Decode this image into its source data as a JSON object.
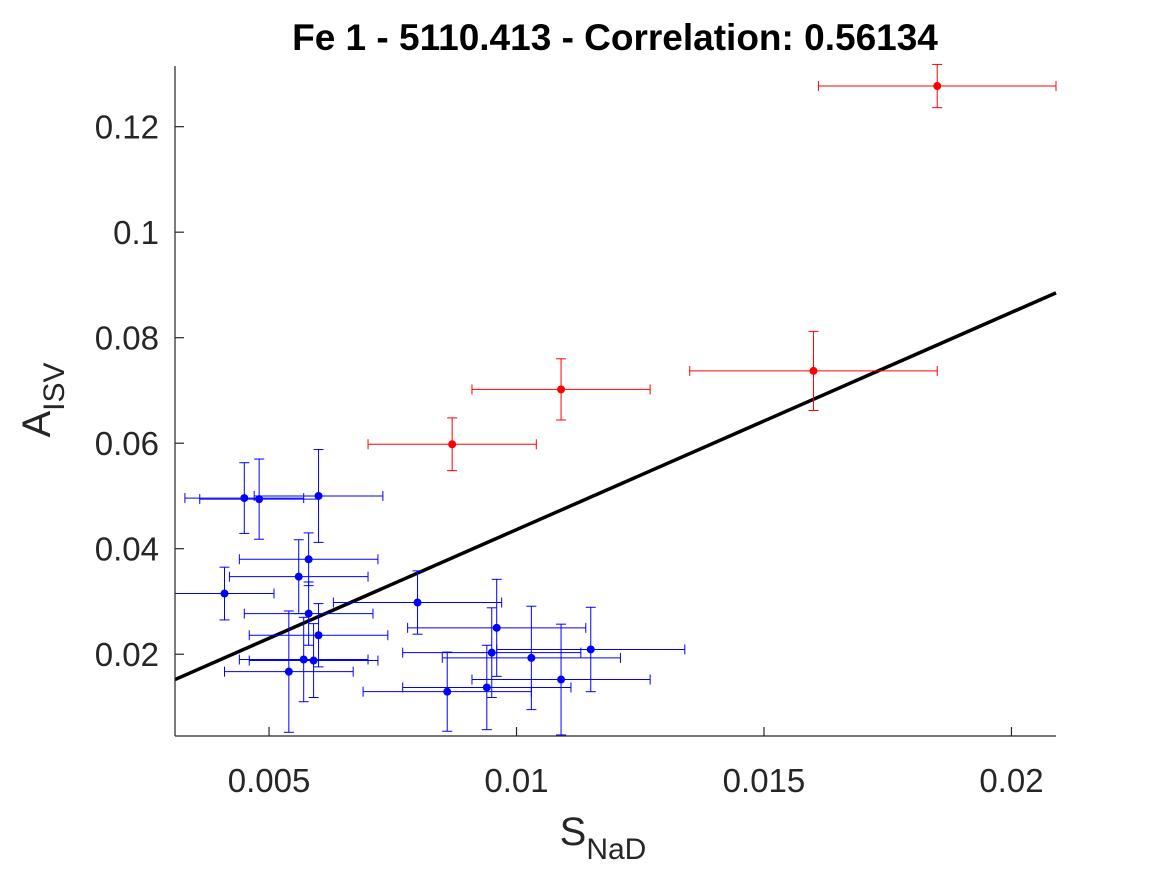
{
  "chart_data": {
    "type": "scatter",
    "title": "Fe 1 - 5110.413 - Correlation: 0.56134",
    "xlabel": {
      "main": "S",
      "sub": "NaD"
    },
    "ylabel": {
      "main": "A",
      "sub": "ISV"
    },
    "xlim": [
      0.0031,
      0.0209
    ],
    "ylim": [
      0.0045,
      0.1315
    ],
    "xticks": [
      {
        "value": 0.005,
        "label": "0.005"
      },
      {
        "value": 0.01,
        "label": "0.01"
      },
      {
        "value": 0.015,
        "label": "0.015"
      },
      {
        "value": 0.02,
        "label": "0.02"
      }
    ],
    "yticks": [
      {
        "value": 0.02,
        "label": "0.02"
      },
      {
        "value": 0.04,
        "label": "0.04"
      },
      {
        "value": 0.06,
        "label": "0.06"
      },
      {
        "value": 0.08,
        "label": "0.08"
      },
      {
        "value": 0.1,
        "label": "0.1"
      },
      {
        "value": 0.12,
        "label": "0.12"
      }
    ],
    "grid": false,
    "fit_line": {
      "x": [
        0.0031,
        0.0209
      ],
      "y": [
        0.0152,
        0.0885
      ],
      "color": "#000000"
    },
    "series": [
      {
        "color": "#ff0000",
        "points": [
          {
            "x": 0.0185,
            "y": 0.1277,
            "xerr": 0.0024,
            "yerr": 0.0041
          },
          {
            "x": 0.016,
            "y": 0.0737,
            "xerr": 0.0025,
            "yerr": 0.0075
          },
          {
            "x": 0.0109,
            "y": 0.0702,
            "xerr": 0.0018,
            "yerr": 0.0058
          },
          {
            "x": 0.0087,
            "y": 0.0598,
            "xerr": 0.0017,
            "yerr": 0.005
          }
        ]
      },
      {
        "color": "#0000ff",
        "points": [
          {
            "x": 0.0045,
            "y": 0.0496,
            "xerr": 0.0012,
            "yerr": 0.0067
          },
          {
            "x": 0.0048,
            "y": 0.0494,
            "xerr": 0.0012,
            "yerr": 0.0076
          },
          {
            "x": 0.006,
            "y": 0.05,
            "xerr": 0.0013,
            "yerr": 0.0088
          },
          {
            "x": 0.0058,
            "y": 0.038,
            "xerr": 0.0014,
            "yerr": 0.005
          },
          {
            "x": 0.0056,
            "y": 0.0347,
            "xerr": 0.0014,
            "yerr": 0.007
          },
          {
            "x": 0.0041,
            "y": 0.0315,
            "xerr": 0.001,
            "yerr": 0.005
          },
          {
            "x": 0.008,
            "y": 0.0298,
            "xerr": 0.0017,
            "yerr": 0.006
          },
          {
            "x": 0.0058,
            "y": 0.0277,
            "xerr": 0.0013,
            "yerr": 0.006
          },
          {
            "x": 0.0096,
            "y": 0.025,
            "xerr": 0.0018,
            "yerr": 0.0092
          },
          {
            "x": 0.006,
            "y": 0.0236,
            "xerr": 0.0014,
            "yerr": 0.006
          },
          {
            "x": 0.0115,
            "y": 0.0209,
            "xerr": 0.0019,
            "yerr": 0.008
          },
          {
            "x": 0.0095,
            "y": 0.0203,
            "xerr": 0.0018,
            "yerr": 0.0085
          },
          {
            "x": 0.0103,
            "y": 0.0193,
            "xerr": 0.0018,
            "yerr": 0.0098
          },
          {
            "x": 0.0057,
            "y": 0.019,
            "xerr": 0.0013,
            "yerr": 0.008
          },
          {
            "x": 0.0059,
            "y": 0.0188,
            "xerr": 0.0013,
            "yerr": 0.007
          },
          {
            "x": 0.0054,
            "y": 0.0167,
            "xerr": 0.0013,
            "yerr": 0.0115
          },
          {
            "x": 0.0109,
            "y": 0.0152,
            "xerr": 0.0018,
            "yerr": 0.0105
          },
          {
            "x": 0.0094,
            "y": 0.0137,
            "xerr": 0.0017,
            "yerr": 0.008
          },
          {
            "x": 0.0086,
            "y": 0.0129,
            "xerr": 0.0017,
            "yerr": 0.0075
          }
        ]
      }
    ]
  }
}
